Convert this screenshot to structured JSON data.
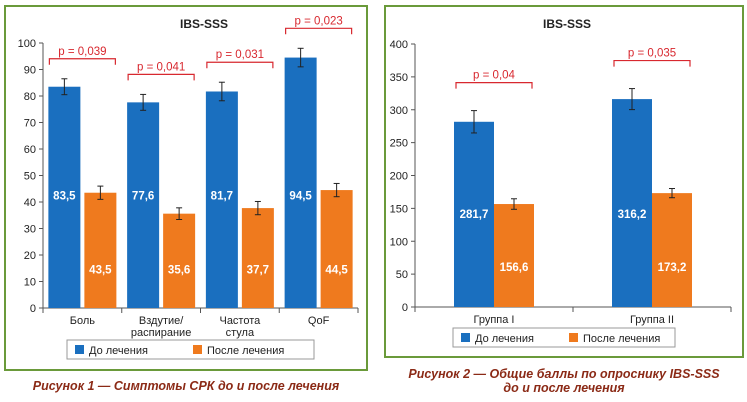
{
  "colors": {
    "before": "#1a6fbf",
    "after": "#ef7a1e",
    "significance": "#d8282f",
    "frame": "#6a9a3a",
    "caption": "#8b2a16"
  },
  "chart_data": [
    {
      "type": "bar",
      "title": "IBS-SSS",
      "categories": [
        [
          "Боль"
        ],
        [
          "Вздутие/",
          "распирание"
        ],
        [
          "Частота",
          "стула"
        ],
        [
          "QoF"
        ]
      ],
      "series": [
        {
          "name": "До лечения",
          "values": [
            83.5,
            77.6,
            81.7,
            94.5
          ],
          "labels": [
            "83,5",
            "77,6",
            "81,7",
            "94,5"
          ],
          "errors": [
            3,
            3,
            3.5,
            3.5
          ]
        },
        {
          "name": "После лечения",
          "values": [
            43.5,
            35.6,
            37.7,
            44.5
          ],
          "labels": [
            "43,5",
            "35,6",
            "37,7",
            "44,5"
          ],
          "errors": [
            2.5,
            2.2,
            2.5,
            2.5
          ]
        }
      ],
      "significance": [
        "p = 0,039",
        "p = 0,041",
        "p = 0,031",
        "p = 0,023"
      ],
      "ylim": [
        0,
        100
      ],
      "yticks": [
        0,
        10,
        20,
        30,
        40,
        50,
        60,
        70,
        80,
        90,
        100
      ],
      "grid": false,
      "legend": "bottom"
    },
    {
      "type": "bar",
      "title": "IBS-SSS",
      "categories": [
        [
          "Группа I"
        ],
        [
          "Группа II"
        ]
      ],
      "series": [
        {
          "name": "До лечения",
          "values": [
            281.7,
            316.2
          ],
          "labels": [
            "281,7",
            "316,2"
          ],
          "errors": [
            17,
            16
          ]
        },
        {
          "name": "После лечения",
          "values": [
            156.6,
            173.2
          ],
          "labels": [
            "156,6",
            "173,2"
          ],
          "errors": [
            8,
            7
          ]
        }
      ],
      "significance": [
        "p = 0,04",
        "p = 0,035"
      ],
      "ylim": [
        0,
        400
      ],
      "yticks": [
        0,
        50,
        100,
        150,
        200,
        250,
        300,
        350,
        400
      ],
      "grid": false,
      "legend": "bottom"
    }
  ],
  "captions": [
    [
      "Рисунок 1 — Симптомы СРК до и после лечения"
    ],
    [
      "Рисунок 2 — Общие баллы по опроснику IBS-SSS",
      "до и после лечения"
    ]
  ]
}
